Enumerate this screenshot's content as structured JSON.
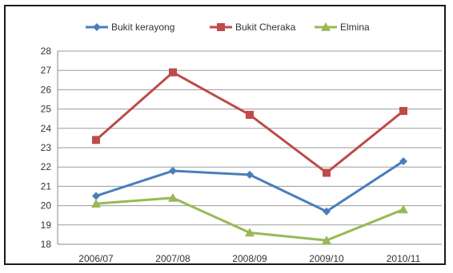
{
  "chart_data": {
    "type": "line",
    "categories": [
      "2006/07",
      "2007/08",
      "2008/09",
      "2009/10",
      "2010/11"
    ],
    "series": [
      {
        "name": "Bukit kerayong",
        "color": "#4a7ebb",
        "marker": "diamond",
        "values": [
          20.5,
          21.8,
          21.6,
          19.7,
          22.3
        ]
      },
      {
        "name": "Bukit Cheraka",
        "color": "#be4b48",
        "marker": "square",
        "values": [
          23.4,
          26.9,
          24.7,
          21.7,
          24.9
        ]
      },
      {
        "name": "Elmina",
        "color": "#98b954",
        "marker": "triangle",
        "values": [
          20.1,
          20.4,
          18.6,
          18.2,
          19.8
        ]
      }
    ],
    "ylim": [
      18,
      28
    ],
    "yticks": [
      "18",
      "19",
      "20",
      "21",
      "22",
      "23",
      "24",
      "25",
      "26",
      "27",
      "28"
    ],
    "grid": true,
    "legend": "top-center"
  }
}
